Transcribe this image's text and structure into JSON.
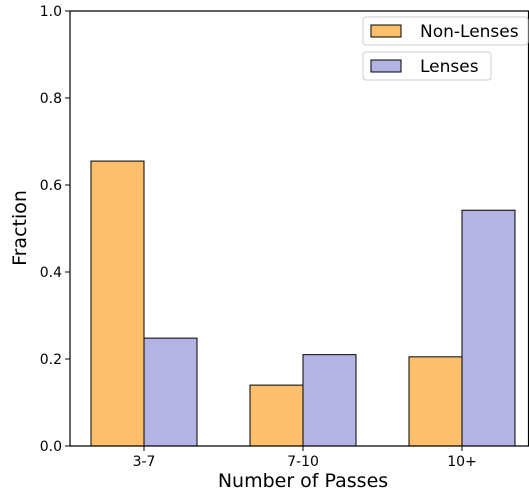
{
  "chart_data": {
    "type": "bar",
    "categories": [
      "3-7",
      "7-10",
      "10+"
    ],
    "series": [
      {
        "name": "Non-Lenses",
        "values": [
          0.655,
          0.14,
          0.205
        ],
        "color": "#fdbf6b"
      },
      {
        "name": "Lenses",
        "values": [
          0.248,
          0.21,
          0.542
        ],
        "color": "#b3b4e3"
      }
    ],
    "xlabel": "Number of Passes",
    "ylabel": "Fraction",
    "ylim": [
      0,
      1.0
    ],
    "yticks": [
      "0.0",
      "0.2",
      "0.4",
      "0.6",
      "0.8",
      "1.0"
    ],
    "grid": false,
    "legend_position": "top-right"
  }
}
